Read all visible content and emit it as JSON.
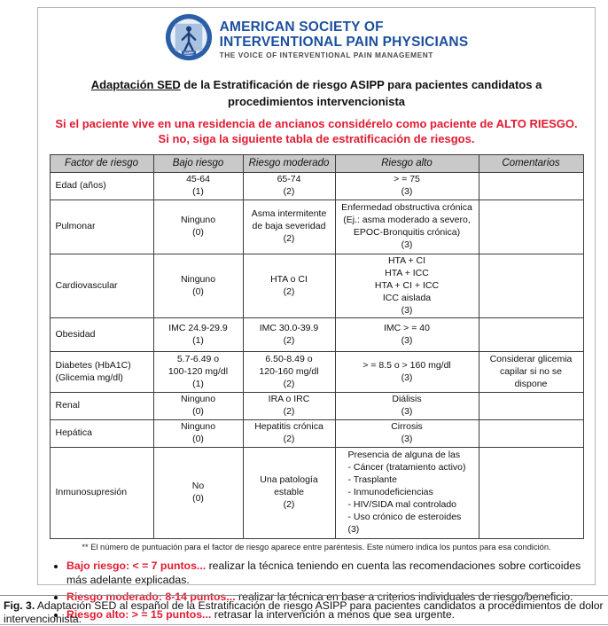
{
  "logo": {
    "line1": "AMERICAN SOCIETY OF",
    "line2": "INTERVENTIONAL PAIN PHYSICIANS",
    "tagline": "THE VOICE OF INTERVENTIONAL PAIN MANAGEMENT",
    "seal_text": "ASIPP",
    "brand_blue": "#1b4f9e"
  },
  "title": {
    "lead": "Adaptación SED",
    "rest": " de la Estratificación de riesgo ASIPP para pacientes candidatos a procedimientos intervencionista"
  },
  "warning": {
    "color": "#e11b32",
    "line1": "Si el paciente vive en una residencia de ancianos considérelo como paciente de ALTO RIESGO.",
    "line2": "Si no, siga la siguiente tabla de estratificación de riesgos."
  },
  "table": {
    "headers": [
      "Factor de riesgo",
      "Bajo riesgo",
      "Riesgo moderado",
      "Riesgo alto",
      "Comentarios"
    ],
    "rows": [
      {
        "cells": [
          "Edad (años)",
          "45-64\n(1)",
          "65-74\n(2)",
          "> = 75\n(3)",
          ""
        ]
      },
      {
        "cells": [
          "Pulmonar",
          "Ninguno\n(0)",
          "Asma intermitente\nde baja severidad\n(2)",
          "Enfermedad obstructiva crónica\n(Ej.: asma moderado a severo,\nEPOC-Bronquitis crónica)\n(3)",
          ""
        ]
      },
      {
        "cells": [
          "Cardiovascular",
          "Ninguno\n(0)",
          "HTA o CI\n(2)",
          "HTA + CI\nHTA + ICC\nHTA + CI + ICC\nICC aislada\n(3)",
          ""
        ]
      },
      {
        "cells": [
          "Obesidad",
          "IMC 24.9-29.9\n(1)",
          "IMC 30.0-39.9\n(2)",
          "IMC > = 40\n(3)",
          ""
        ]
      },
      {
        "cells": [
          "Diabetes (HbA1C)\n(Glicemia mg/dl)",
          "5.7-6.49 o\n100-120 mg/dl\n(1)",
          "6.50-8.49 o\n120-160 mg/dl\n(2)",
          "> = 8.5 o > 160 mg/dl\n(3)",
          "Considerar glicemia\ncapilar si no se\ndispone"
        ]
      },
      {
        "cells": [
          "Renal",
          "Ninguno\n(0)",
          "IRA o IRC\n(2)",
          "Diálisis\n(3)",
          ""
        ]
      },
      {
        "cells": [
          "Hepática",
          "Ninguno\n(0)",
          "Hepatitis crónica\n(2)",
          "Cirrosis\n(3)",
          ""
        ]
      },
      {
        "cells": [
          "Inmunosupresión",
          "No\n(0)",
          "Una patología\nestable\n(2)",
          "Presencia de alguna de las\n- Cáncer (tratamiento activo)\n- Trasplante\n- Inmunodeficiencias\n- HIV/SIDA mal controlado\n- Uso crónico de esteroides\n(3)",
          ""
        ],
        "high_align": "left"
      }
    ]
  },
  "footnote": "** El número de puntuación para el factor de riesgo aparece entre paréntesis. Este número indica los puntos para esa condición.",
  "legend": [
    {
      "lead": "Bajo riesgo: < = 7 puntos...",
      "rest": " realizar la técnica teniendo en cuenta las recomendaciones sobre corticoides más adelante explicadas."
    },
    {
      "lead": "Riesgo moderado: 8-14 puntos...",
      "rest": " realizar la técnica en base a criterios individuales de riesgo/beneficio."
    },
    {
      "lead": "Riesgo alto: > = 15 puntos...",
      "rest": " retrasar la intervención a menos que sea urgente."
    }
  ],
  "caption": {
    "lead": "Fig. 3.",
    "rest": " Adaptación SED al español de la Estratificación de riesgo ASIPP para pacientes candidatos a procedimientos de dolor intervencionista."
  }
}
